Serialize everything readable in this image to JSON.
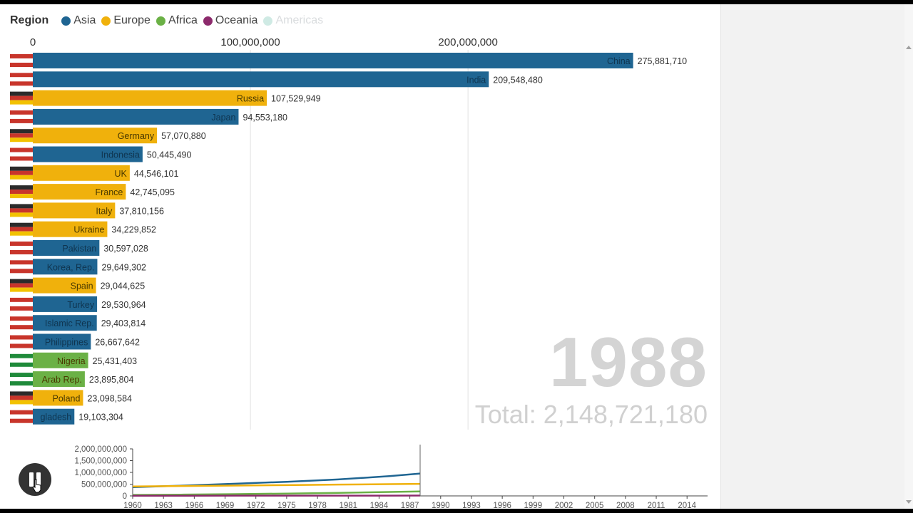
{
  "legend": {
    "title": "Region",
    "items": [
      {
        "label": "Asia",
        "color": "#1f6592",
        "active": true
      },
      {
        "label": "Europe",
        "color": "#f0b10c",
        "active": true
      },
      {
        "label": "Africa",
        "color": "#6bb146",
        "active": true
      },
      {
        "label": "Oceania",
        "color": "#8c2a6c",
        "active": true
      },
      {
        "label": "Americas",
        "color": "#cfeae4",
        "active": false
      }
    ]
  },
  "year": "1988",
  "total": "Total: 2,148,721,180",
  "chart_data": [
    {
      "type": "bar",
      "orientation": "horizontal",
      "x_ticks": [
        "0",
        "100,000,000",
        "200,000,000"
      ],
      "x_tick_values": [
        0,
        100000000,
        200000000
      ],
      "categories": [
        "China",
        "India",
        "Russia",
        "Japan",
        "Germany",
        "Indonesia",
        "UK",
        "France",
        "Italy",
        "Ukraine",
        "Pakistan",
        "Korea, Rep.",
        "Spain",
        "Turkey",
        "Islamic Rep.",
        "Philippines",
        "Nigeria",
        "Arab Rep.",
        "Poland",
        "gladesh"
      ],
      "values": [
        275881710,
        209548480,
        107529949,
        94553180,
        57070880,
        50445490,
        44546101,
        42745095,
        37810156,
        34229852,
        30597028,
        29649302,
        29044625,
        29530964,
        29403814,
        26667642,
        25431403,
        23895804,
        23098584,
        19103304
      ],
      "value_labels": [
        "275,881,710",
        "209,548,480",
        "107,529,949",
        "94,553,180",
        "57,070,880",
        "50,445,490",
        "44,546,101",
        "42,745,095",
        "37,810,156",
        "34,229,852",
        "30,597,028",
        "29,649,302",
        "29,044,625",
        "29,530,964",
        "29,403,814",
        "26,667,642",
        "25,431,403",
        "23,895,804",
        "23,098,584",
        "19,103,304"
      ],
      "regions": [
        "Asia",
        "Asia",
        "Europe",
        "Asia",
        "Europe",
        "Asia",
        "Europe",
        "Europe",
        "Europe",
        "Europe",
        "Asia",
        "Asia",
        "Europe",
        "Asia",
        "Asia",
        "Asia",
        "Africa",
        "Africa",
        "Europe",
        "Asia"
      ],
      "flags": [
        "china-flag",
        "india-flag",
        "russia-flag",
        "japan-flag",
        "germany-flag",
        "indonesia-flag",
        "uk-flag",
        "france-flag",
        "italy-flag",
        "ukraine-flag",
        "pakistan-flag",
        "korea-flag",
        "spain-flag",
        "turkey-flag",
        "iran-flag",
        "philippines-flag",
        "nigeria-flag",
        "egypt-flag",
        "poland-flag",
        "bangladesh-flag"
      ]
    },
    {
      "type": "line",
      "x": [
        1960,
        1963,
        1966,
        1969,
        1972,
        1975,
        1978,
        1981,
        1984,
        1987
      ],
      "x_ticks": [
        "1960",
        "1963",
        "1966",
        "1969",
        "1972",
        "1975",
        "1978",
        "1981",
        "1984",
        "1987",
        "1990",
        "1993",
        "1996",
        "1999",
        "2002",
        "2005",
        "2008",
        "2011",
        "2014"
      ],
      "y_ticks": [
        "0",
        "500,000,000",
        "1,000,000,000",
        "1,500,000,000",
        "2,000,000,000"
      ],
      "ylim": [
        0,
        2000000000
      ],
      "xlim": [
        1960,
        2016
      ],
      "current_year": 1988,
      "series": [
        {
          "name": "Asia",
          "color": "#1f6592",
          "x": [
            1960,
            1965,
            1970,
            1975,
            1980,
            1985,
            1988
          ],
          "values": [
            370000000,
            440000000,
            520000000,
            600000000,
            700000000,
            840000000,
            950000000
          ]
        },
        {
          "name": "Europe",
          "color": "#f0b10c",
          "x": [
            1960,
            1965,
            1970,
            1975,
            1980,
            1985,
            1988
          ],
          "values": [
            400000000,
            420000000,
            440000000,
            460000000,
            480000000,
            500000000,
            510000000
          ]
        },
        {
          "name": "Africa",
          "color": "#6bb146",
          "x": [
            1960,
            1965,
            1970,
            1975,
            1980,
            1985,
            1988
          ],
          "values": [
            40000000,
            55000000,
            75000000,
            100000000,
            130000000,
            165000000,
            190000000
          ]
        },
        {
          "name": "Oceania",
          "color": "#8c2a6c",
          "x": [
            1960,
            1965,
            1970,
            1975,
            1980,
            1985,
            1988
          ],
          "values": [
            8000000,
            9000000,
            10000000,
            11000000,
            12000000,
            13000000,
            14000000
          ]
        }
      ]
    }
  ]
}
